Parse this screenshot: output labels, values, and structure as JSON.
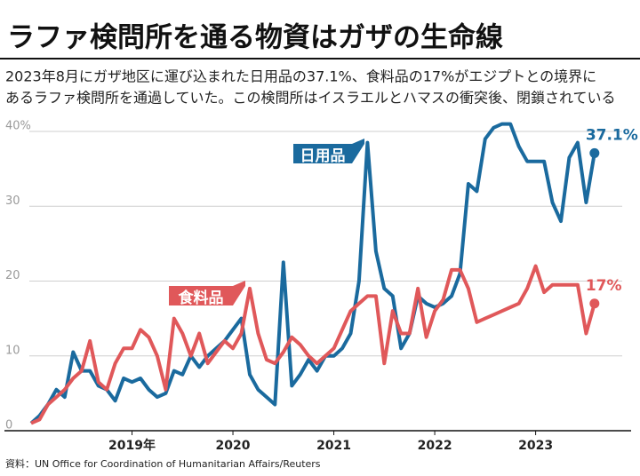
{
  "chart_data": {
    "type": "line",
    "title": "ラファ検問所を通る物資はガザの生命線",
    "subtitle": [
      "2023年8月にガザ地区に運び込まれた日用品の37.1%、食料品の17%がエジプトとの境界に",
      "あるラファ検問所を通過していた。この検問所はイスラエルとハマスの衝突後、閉鎖されている"
    ],
    "source": "資料：UN Office for Coordination of Humanitarian Affairs/Reuters",
    "categories": [
      null,
      null,
      null,
      null,
      null,
      null,
      null,
      null,
      null,
      null,
      null,
      null,
      "2019年",
      null,
      null,
      null,
      null,
      null,
      null,
      null,
      null,
      null,
      null,
      null,
      "2020",
      null,
      null,
      null,
      null,
      null,
      null,
      null,
      null,
      null,
      null,
      null,
      "2021",
      null,
      null,
      null,
      null,
      null,
      null,
      null,
      null,
      null,
      null,
      null,
      "2022",
      null,
      null,
      null,
      null,
      null,
      null,
      null,
      null,
      null,
      null,
      null,
      "2023",
      null,
      null,
      null,
      null,
      null,
      null,
      null
    ],
    "series": [
      {
        "name": "日用品",
        "color": "#1a6a9e",
        "values": [
          1,
          2,
          3.5,
          5.5,
          4.5,
          10.5,
          8,
          8,
          6,
          5.5,
          4,
          7,
          6.5,
          7,
          5.5,
          4.5,
          5,
          8,
          7.5,
          10,
          8.5,
          10,
          11,
          12,
          13.5,
          15,
          7.5,
          5.5,
          4.5,
          3.5,
          22.5,
          6,
          7.5,
          9.5,
          8,
          10,
          10,
          11,
          13,
          20,
          38.5,
          24,
          19,
          18,
          11,
          13,
          18,
          17,
          16.5,
          17,
          18,
          21,
          33,
          32,
          39,
          40.5,
          41,
          41,
          38,
          36,
          36,
          36,
          30.5,
          28,
          36.5,
          38.5,
          30.5,
          37.1
        ],
        "value_labels": [
          null,
          null,
          null,
          null,
          null,
          null,
          null,
          null,
          null,
          null,
          null,
          null,
          null,
          null,
          null,
          null,
          null,
          null,
          null,
          null,
          null,
          null,
          null,
          null,
          null,
          null,
          null,
          null,
          null,
          null,
          null,
          null,
          null,
          null,
          null,
          null,
          null,
          null,
          null,
          null,
          null,
          null,
          null,
          null,
          null,
          null,
          null,
          null,
          null,
          null,
          null,
          null,
          null,
          null,
          null,
          null,
          null,
          null,
          null,
          null,
          null,
          null,
          null,
          null,
          null,
          null,
          null,
          "37.1%"
        ]
      },
      {
        "name": "食料品",
        "color": "#e0585a",
        "values": [
          1,
          1.5,
          3.5,
          4.5,
          5.5,
          7,
          8,
          12,
          6.5,
          5.5,
          9,
          11,
          11,
          13.5,
          12.5,
          10,
          5.5,
          15,
          13,
          10,
          13,
          9,
          10.5,
          12,
          11,
          13,
          19,
          13,
          9.5,
          9,
          10.5,
          12.5,
          11.5,
          10,
          9,
          10,
          11,
          13.5,
          16,
          17,
          18,
          18,
          9,
          16,
          13,
          13,
          19,
          12.5,
          16,
          17.5,
          21.5,
          21.5,
          19,
          14.5,
          15,
          15.5,
          16,
          16.5,
          17,
          19,
          22,
          18.5,
          19.5,
          19.5,
          19.5,
          19.5,
          13,
          17
        ],
        "value_labels": [
          null,
          null,
          null,
          null,
          null,
          null,
          null,
          null,
          null,
          null,
          null,
          null,
          null,
          null,
          null,
          null,
          null,
          null,
          null,
          null,
          null,
          null,
          null,
          null,
          null,
          null,
          null,
          null,
          null,
          null,
          null,
          null,
          null,
          null,
          null,
          null,
          null,
          null,
          null,
          null,
          null,
          null,
          null,
          null,
          null,
          null,
          null,
          null,
          null,
          null,
          null,
          null,
          null,
          null,
          null,
          null,
          null,
          null,
          null,
          null,
          null,
          null,
          null,
          null,
          null,
          null,
          null,
          "17%"
        ]
      }
    ],
    "ylim": [
      0,
      40
    ],
    "yticks": [
      0,
      10,
      20,
      30,
      {
        "value": 40,
        "label": "40%"
      }
    ],
    "grid": true
  }
}
